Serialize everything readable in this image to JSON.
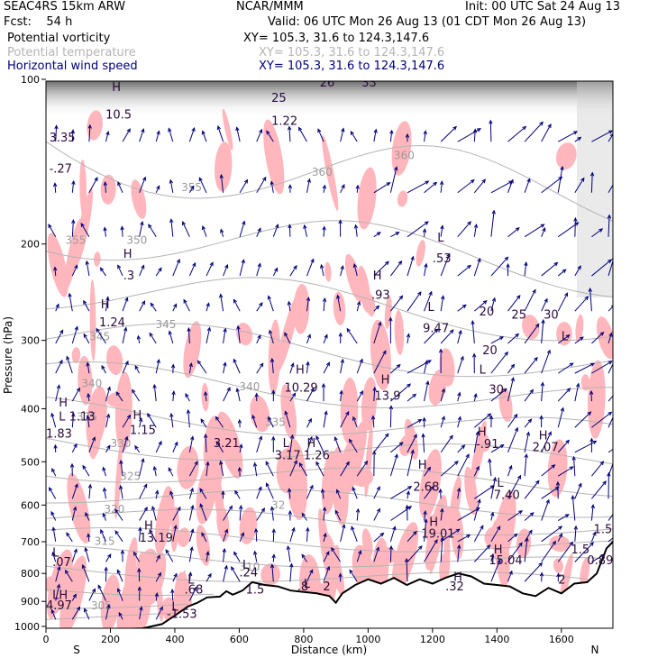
{
  "header": {
    "model": "SEAC4RS 15km ARW",
    "org": "NCAR/MMM",
    "init": "Init: 00 UTC Sat 24 Aug 13",
    "fcst": "Fcst:    54 h",
    "valid": "Valid: 06 UTC Mon 26 Aug 13 (01 CDT Mon 26 Aug 13)"
  },
  "legend": [
    {
      "label": "Potential vorticity",
      "xy": "XY= 105.3, 31.6 to 124.3,147.6",
      "color": "#000000"
    },
    {
      "label": "Potential temperature",
      "xy": "XY= 105.3, 31.6 to 124.3,147.6",
      "color": "#b4b4b4"
    },
    {
      "label": "Horizontal wind speed",
      "xy": "XY= 105.3, 31.6 to 124.3,147.6",
      "color": "#00007a"
    }
  ],
  "chart_data": {
    "type": "cross-section",
    "xlabel": "Distance (km)",
    "ylabel": "Pressure (hPa)",
    "xlim": [
      0,
      1760
    ],
    "ylim": [
      1000,
      100
    ],
    "y_scale": "log",
    "x_ticks": [
      0,
      200,
      400,
      600,
      800,
      1000,
      1200,
      1400,
      1600
    ],
    "y_ticks": [
      100,
      200,
      300,
      400,
      500,
      600,
      700,
      800,
      900,
      1000
    ],
    "x_endpoint_labels": {
      "left": "S",
      "right": "N"
    },
    "grid": false,
    "terrain_color": "#000000",
    "pv_shading_color": "#ffb6bc",
    "theta_color": "#b4b4b4",
    "wind_color": "#00007a",
    "terrain_profile": [
      [
        0,
        1012
      ],
      [
        200,
        1012
      ],
      [
        300,
        1008
      ],
      [
        360,
        990
      ],
      [
        400,
        955
      ],
      [
        440,
        920
      ],
      [
        470,
        905
      ],
      [
        500,
        885
      ],
      [
        540,
        882
      ],
      [
        560,
        862
      ],
      [
        580,
        875
      ],
      [
        610,
        860
      ],
      [
        640,
        830
      ],
      [
        680,
        840
      ],
      [
        720,
        845
      ],
      [
        760,
        860
      ],
      [
        800,
        865
      ],
      [
        840,
        870
      ],
      [
        880,
        880
      ],
      [
        900,
        905
      ],
      [
        920,
        870
      ],
      [
        960,
        840
      ],
      [
        1000,
        820
      ],
      [
        1040,
        835
      ],
      [
        1080,
        815
      ],
      [
        1120,
        840
      ],
      [
        1160,
        820
      ],
      [
        1200,
        835
      ],
      [
        1240,
        815
      ],
      [
        1280,
        800
      ],
      [
        1320,
        810
      ],
      [
        1360,
        835
      ],
      [
        1400,
        840
      ],
      [
        1440,
        845
      ],
      [
        1480,
        870
      ],
      [
        1520,
        880
      ],
      [
        1560,
        850
      ],
      [
        1600,
        870
      ],
      [
        1640,
        835
      ],
      [
        1680,
        830
      ],
      [
        1710,
        800
      ],
      [
        1740,
        720
      ],
      [
        1760,
        700
      ]
    ],
    "theta_labels": [
      {
        "x": 60,
        "p": 200,
        "text": "355"
      },
      {
        "x": 420,
        "p": 160,
        "text": "355"
      },
      {
        "x": 250,
        "p": 200,
        "text": "350"
      },
      {
        "x": 340,
        "p": 285,
        "text": "345"
      },
      {
        "x": 135,
        "p": 300,
        "text": "345"
      },
      {
        "x": 110,
        "p": 365,
        "text": "340"
      },
      {
        "x": 600,
        "p": 370,
        "text": "340"
      },
      {
        "x": 95,
        "p": 420,
        "text": "335"
      },
      {
        "x": 680,
        "p": 430,
        "text": "335"
      },
      {
        "x": 200,
        "p": 470,
        "text": "330"
      },
      {
        "x": 230,
        "p": 540,
        "text": "325"
      },
      {
        "x": 180,
        "p": 620,
        "text": "320"
      },
      {
        "x": 700,
        "p": 610,
        "text": "32"
      },
      {
        "x": 150,
        "p": 710,
        "text": "315"
      },
      {
        "x": 140,
        "p": 930,
        "text": "305"
      },
      {
        "x": 600,
        "p": 790,
        "text": "310"
      },
      {
        "x": 825,
        "p": 150,
        "text": "360"
      },
      {
        "x": 1080,
        "p": 140,
        "text": "360"
      }
    ],
    "pv_extrema": [
      {
        "x": 10,
        "p": 130,
        "text": "3.35"
      },
      {
        "x": 10,
        "p": 148,
        "text": "-.27"
      },
      {
        "x": 205,
        "p": 105,
        "text": "H"
      },
      {
        "x": 185,
        "p": 118,
        "text": "10.5"
      },
      {
        "x": 240,
        "p": 212,
        "text": "H"
      },
      {
        "x": 240,
        "p": 232,
        "text": ".3"
      },
      {
        "x": 170,
        "p": 262,
        "text": "H"
      },
      {
        "x": 165,
        "p": 283,
        "text": "1.24"
      },
      {
        "x": 700,
        "p": 110,
        "text": "25"
      },
      {
        "x": 700,
        "p": 121,
        "text": "1.22"
      },
      {
        "x": 850,
        "p": 103,
        "text": "26"
      },
      {
        "x": 980,
        "p": 103,
        "text": "33"
      },
      {
        "x": 1350,
        "p": 100,
        "text": "5"
      },
      {
        "x": 1015,
        "p": 232,
        "text": "H"
      },
      {
        "x": 1010,
        "p": 252,
        "text": ".93"
      },
      {
        "x": 1215,
        "p": 198,
        "text": "L"
      },
      {
        "x": 1200,
        "p": 216,
        "text": ".53"
      },
      {
        "x": 1185,
        "p": 265,
        "text": "L"
      },
      {
        "x": 1170,
        "p": 290,
        "text": "9.47"
      },
      {
        "x": 1345,
        "p": 270,
        "text": "20"
      },
      {
        "x": 1445,
        "p": 274,
        "text": "25"
      },
      {
        "x": 1545,
        "p": 274,
        "text": "30"
      },
      {
        "x": 1600,
        "p": 300,
        "text": "L"
      },
      {
        "x": 1355,
        "p": 318,
        "text": "20"
      },
      {
        "x": 1345,
        "p": 345,
        "text": "L"
      },
      {
        "x": 1375,
        "p": 375,
        "text": "30"
      },
      {
        "x": 775,
        "p": 345,
        "text": "H"
      },
      {
        "x": 740,
        "p": 372,
        "text": "10.29"
      },
      {
        "x": 1040,
        "p": 360,
        "text": "H"
      },
      {
        "x": 1020,
        "p": 385,
        "text": "13.9"
      },
      {
        "x": 40,
        "p": 396,
        "text": "H"
      },
      {
        "x": 40,
        "p": 420,
        "text": "L 1.13"
      },
      {
        "x": 0,
        "p": 452,
        "text": "1.83"
      },
      {
        "x": 270,
        "p": 418,
        "text": "H"
      },
      {
        "x": 260,
        "p": 445,
        "text": "1.15"
      },
      {
        "x": 520,
        "p": 470,
        "text": "3.21"
      },
      {
        "x": 735,
        "p": 470,
        "text": "L"
      },
      {
        "x": 710,
        "p": 495,
        "text": "3.17"
      },
      {
        "x": 810,
        "p": 470,
        "text": "H"
      },
      {
        "x": 800,
        "p": 495,
        "text": "1.26"
      },
      {
        "x": 1340,
        "p": 448,
        "text": "H"
      },
      {
        "x": 1335,
        "p": 472,
        "text": "-.91"
      },
      {
        "x": 1530,
        "p": 455,
        "text": "H"
      },
      {
        "x": 1510,
        "p": 478,
        "text": "2.07"
      },
      {
        "x": 1155,
        "p": 515,
        "text": "H"
      },
      {
        "x": 1140,
        "p": 565,
        "text": "2.68"
      },
      {
        "x": 1400,
        "p": 555,
        "text": "L"
      },
      {
        "x": 1390,
        "p": 585,
        "text": "7.40"
      },
      {
        "x": 305,
        "p": 665,
        "text": "H"
      },
      {
        "x": 290,
        "p": 700,
        "text": "13.19"
      },
      {
        "x": 1190,
        "p": 655,
        "text": "H"
      },
      {
        "x": 1165,
        "p": 688,
        "text": "19.01"
      },
      {
        "x": 1700,
        "p": 675,
        "text": "1.5"
      },
      {
        "x": 1390,
        "p": 735,
        "text": "H"
      },
      {
        "x": 1375,
        "p": 770,
        "text": "15.04"
      },
      {
        "x": 1630,
        "p": 735,
        "text": "1.5"
      },
      {
        "x": 1680,
        "p": 770,
        "text": "0.89"
      },
      {
        "x": 20,
        "p": 745,
        "text": "L"
      },
      {
        "x": 20,
        "p": 775,
        "text": ".07"
      },
      {
        "x": 610,
        "p": 785,
        "text": "L"
      },
      {
        "x": 600,
        "p": 810,
        "text": ".24"
      },
      {
        "x": 440,
        "p": 835,
        "text": "L"
      },
      {
        "x": 430,
        "p": 870,
        "text": ".68"
      },
      {
        "x": 620,
        "p": 870,
        "text": "1.5"
      },
      {
        "x": 800,
        "p": 850,
        "text": "L"
      },
      {
        "x": 780,
        "p": 860,
        "text": ".8"
      },
      {
        "x": 860,
        "p": 860,
        "text": "2"
      },
      {
        "x": 1265,
        "p": 825,
        "text": "H"
      },
      {
        "x": 1240,
        "p": 860,
        "text": ".32"
      },
      {
        "x": 1590,
        "p": 835,
        "text": "2"
      },
      {
        "x": 20,
        "p": 890,
        "text": "LH"
      },
      {
        "x": 0,
        "p": 930,
        "text": "4.97"
      },
      {
        "x": 390,
        "p": 935,
        "text": "L"
      },
      {
        "x": 375,
        "p": 965,
        "text": "-1.53"
      },
      {
        "x": 40,
        "p": 1055,
        "text": "H"
      },
      {
        "x": 25,
        "p": 1085,
        "text": "3.0.17"
      }
    ]
  }
}
